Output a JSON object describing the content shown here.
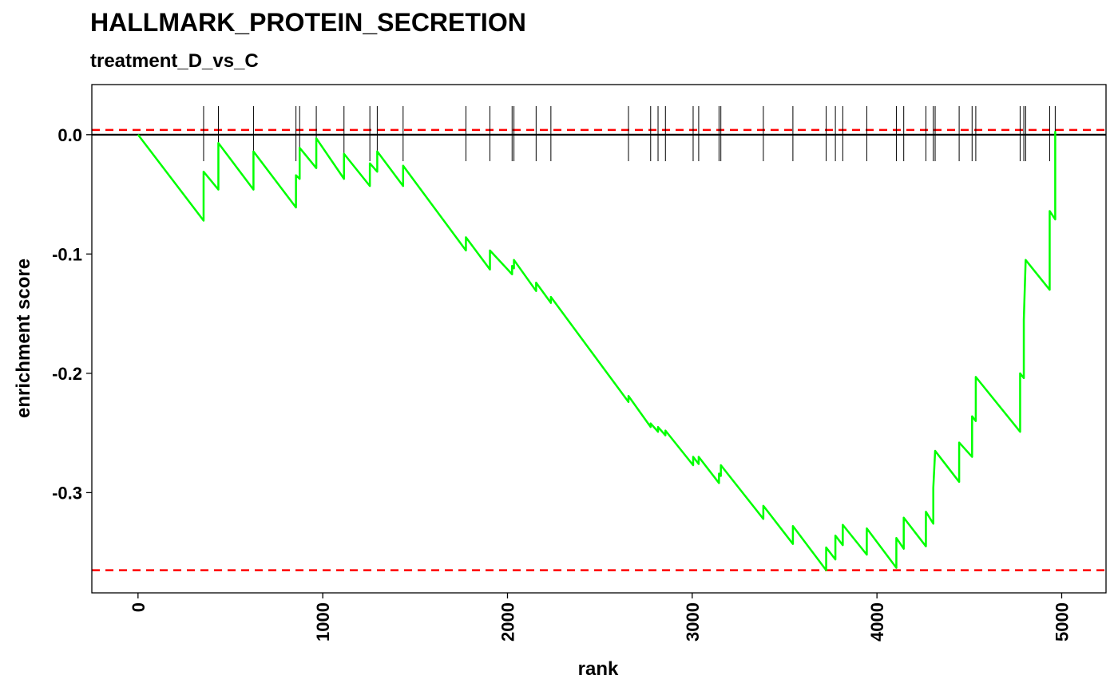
{
  "chart_data": {
    "type": "line",
    "title": "HALLMARK_PROTEIN_SECRETION",
    "subtitle": "treatment_D_vs_C",
    "xlabel": "rank",
    "ylabel": "enrichment score",
    "xlim": [
      -250,
      5240
    ],
    "ylim": [
      -0.384,
      0.042
    ],
    "x_ticks": [
      0,
      1000,
      2000,
      3000,
      4000,
      5000
    ],
    "x_tick_labels": [
      "0",
      "1000",
      "2000",
      "3000",
      "4000",
      "5000"
    ],
    "y_ticks": [
      0.0,
      -0.1,
      -0.2,
      -0.3
    ],
    "y_tick_labels": [
      "0.0",
      "-0.1",
      "-0.2",
      "-0.3"
    ],
    "grid": false,
    "colors": {
      "curve": "#00ff00",
      "threshold": "#ff0000",
      "zero": "#000000",
      "hits": "#000000"
    },
    "reference_lines": [
      {
        "kind": "zero",
        "y": 0.0,
        "style": "solid"
      },
      {
        "kind": "max_es",
        "y": 0.004,
        "style": "dashed"
      },
      {
        "kind": "min_es",
        "y": -0.365,
        "style": "dashed"
      }
    ],
    "hit_ranks": [
      355,
      435,
      625,
      855,
      875,
      965,
      1115,
      1255,
      1295,
      1435,
      1775,
      1905,
      2025,
      2035,
      2155,
      2235,
      2655,
      2775,
      2815,
      2855,
      3005,
      3035,
      3145,
      3155,
      3385,
      3545,
      3725,
      3775,
      3815,
      3945,
      4105,
      4145,
      4265,
      4305,
      4315,
      4445,
      4515,
      4535,
      4775,
      4795,
      4805,
      4935,
      4965
    ],
    "series": [
      {
        "x": [
          0,
          355,
          355,
          435,
          435,
          625,
          625,
          855,
          855,
          875,
          875,
          965,
          965,
          1115,
          1115,
          1255,
          1255,
          1295,
          1295,
          1435,
          1435,
          1775,
          1775,
          1905,
          1905,
          2025,
          2025,
          2035,
          2035,
          2155,
          2155,
          2235,
          2235,
          2655,
          2655,
          2775,
          2775,
          2815,
          2815,
          2855,
          2855,
          3005,
          3005,
          3035,
          3035,
          3145,
          3145,
          3155,
          3155,
          3385,
          3385,
          3545,
          3545,
          3725,
          3725,
          3775,
          3775,
          3815,
          3815,
          3945,
          3945,
          4105,
          4105,
          4145,
          4145,
          4265,
          4265,
          4305,
          4305,
          4315,
          4315,
          4445,
          4445,
          4515,
          4515,
          4535,
          4535,
          4775,
          4775,
          4795,
          4795,
          4805,
          4805,
          4935,
          4935,
          4965,
          4965
        ],
        "y": [
          0.0,
          -0.072,
          -0.031,
          -0.046,
          -0.007,
          -0.046,
          -0.014,
          -0.061,
          -0.034,
          -0.037,
          -0.011,
          -0.028,
          -0.003,
          -0.037,
          -0.016,
          -0.043,
          -0.024,
          -0.031,
          -0.014,
          -0.043,
          -0.026,
          -0.097,
          -0.086,
          -0.113,
          -0.097,
          -0.117,
          -0.11,
          -0.112,
          -0.105,
          -0.131,
          -0.124,
          -0.141,
          -0.136,
          -0.224,
          -0.219,
          -0.245,
          -0.242,
          -0.249,
          -0.245,
          -0.252,
          -0.248,
          -0.277,
          -0.27,
          -0.276,
          -0.27,
          -0.292,
          -0.284,
          -0.286,
          -0.277,
          -0.322,
          -0.311,
          -0.343,
          -0.328,
          -0.365,
          -0.346,
          -0.356,
          -0.336,
          -0.344,
          -0.327,
          -0.352,
          -0.33,
          -0.363,
          -0.338,
          -0.347,
          -0.321,
          -0.345,
          -0.316,
          -0.326,
          -0.296,
          -0.265,
          -0.265,
          -0.291,
          -0.258,
          -0.27,
          -0.236,
          -0.24,
          -0.203,
          -0.249,
          -0.2,
          -0.204,
          -0.155,
          -0.105,
          -0.105,
          -0.13,
          -0.064,
          -0.071,
          0.003
        ]
      }
    ]
  }
}
